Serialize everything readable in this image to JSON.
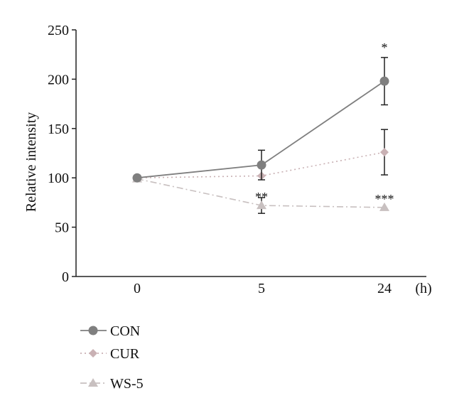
{
  "chart_data": {
    "type": "line",
    "categories": [
      "0",
      "5",
      "24"
    ],
    "x_unit": "(h)",
    "ylabel": "Relative intensity",
    "ylim": [
      0,
      250
    ],
    "yticks": [
      0,
      50,
      100,
      150,
      200,
      250
    ],
    "grid": false,
    "legend_position": "bottom-left",
    "series": [
      {
        "name": "CON",
        "values": [
          100,
          113,
          198
        ],
        "error": [
          null,
          15,
          24
        ],
        "color": "#7f7f7f",
        "marker": "circle",
        "line_style": "solid",
        "significance": [
          "",
          "",
          "*"
        ]
      },
      {
        "name": "CUR",
        "values": [
          100,
          102,
          126
        ],
        "error": [
          null,
          null,
          23
        ],
        "color": "#c9b1b4",
        "marker": "diamond",
        "line_style": "dotted",
        "significance": [
          "",
          "",
          ""
        ]
      },
      {
        "name": "WS-5",
        "values": [
          99,
          72,
          70
        ],
        "error": [
          null,
          8,
          null
        ],
        "color": "#c8c0c0",
        "marker": "triangle",
        "line_style": "dash-dot",
        "significance": [
          "",
          "**",
          "***"
        ]
      }
    ]
  }
}
